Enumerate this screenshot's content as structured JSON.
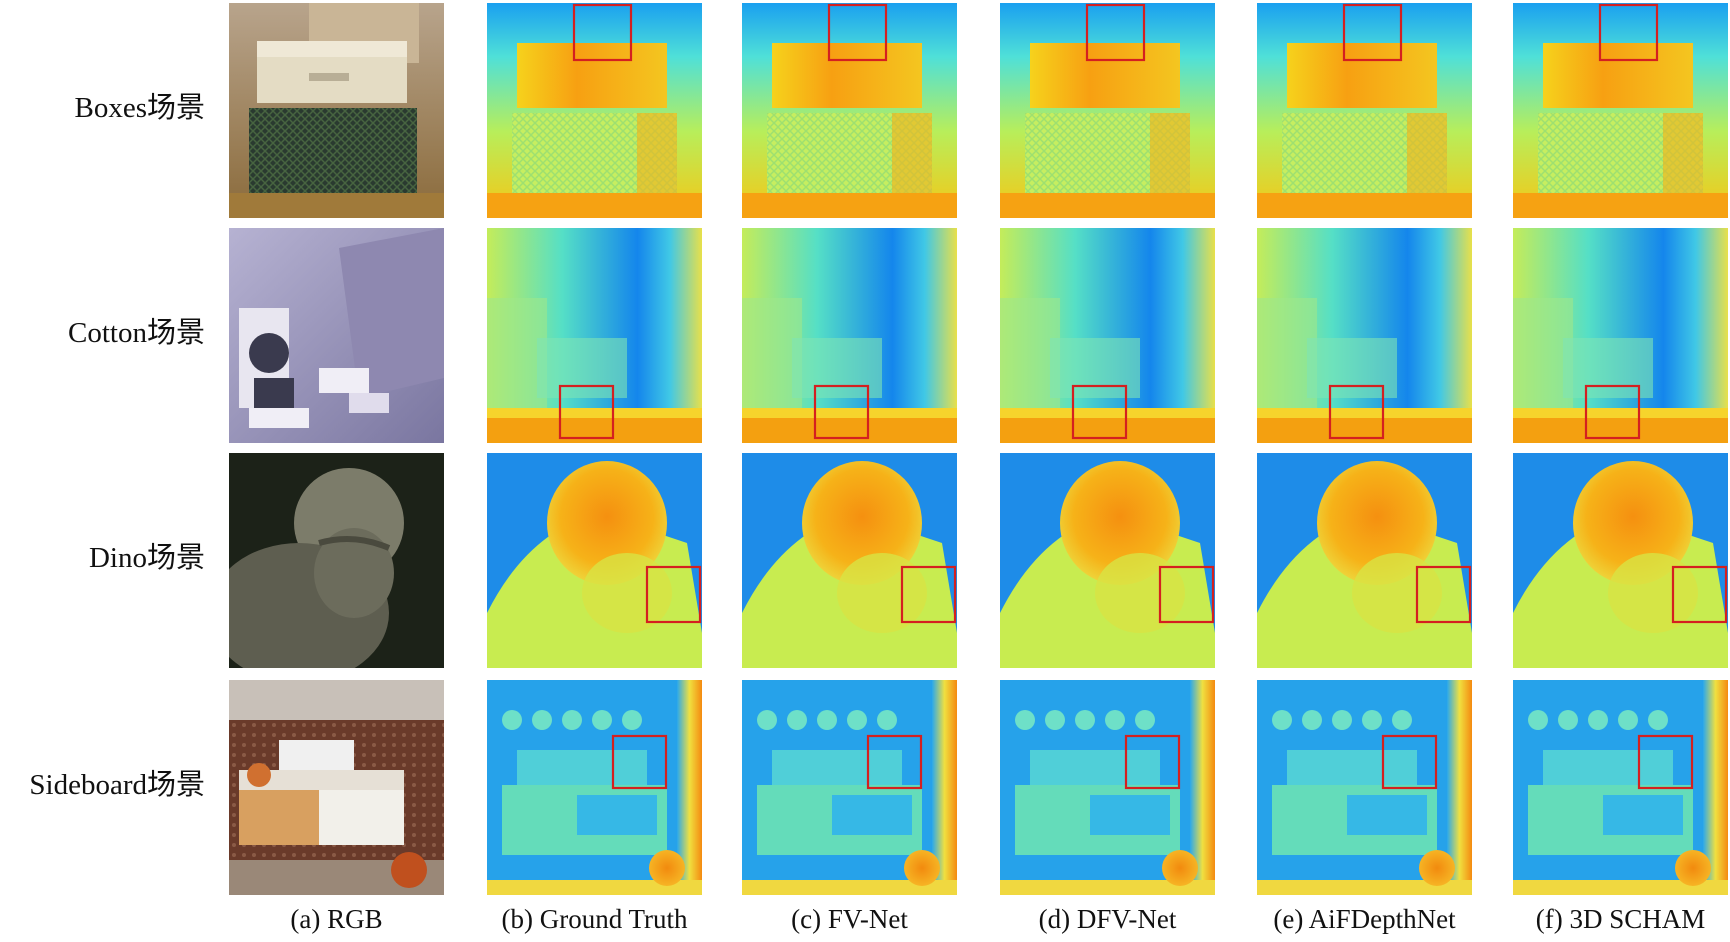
{
  "figure": {
    "row_labels": [
      "Boxes场景",
      "Cotton场景",
      "Dino场景",
      "Sideboard场景"
    ],
    "column_labels": [
      "(a) RGB",
      "(b) Ground Truth",
      "(c) FV-Net",
      "(d) DFV-Net",
      "(e) AiFDepthNet",
      "(f) 3D SCHAM"
    ]
  }
}
